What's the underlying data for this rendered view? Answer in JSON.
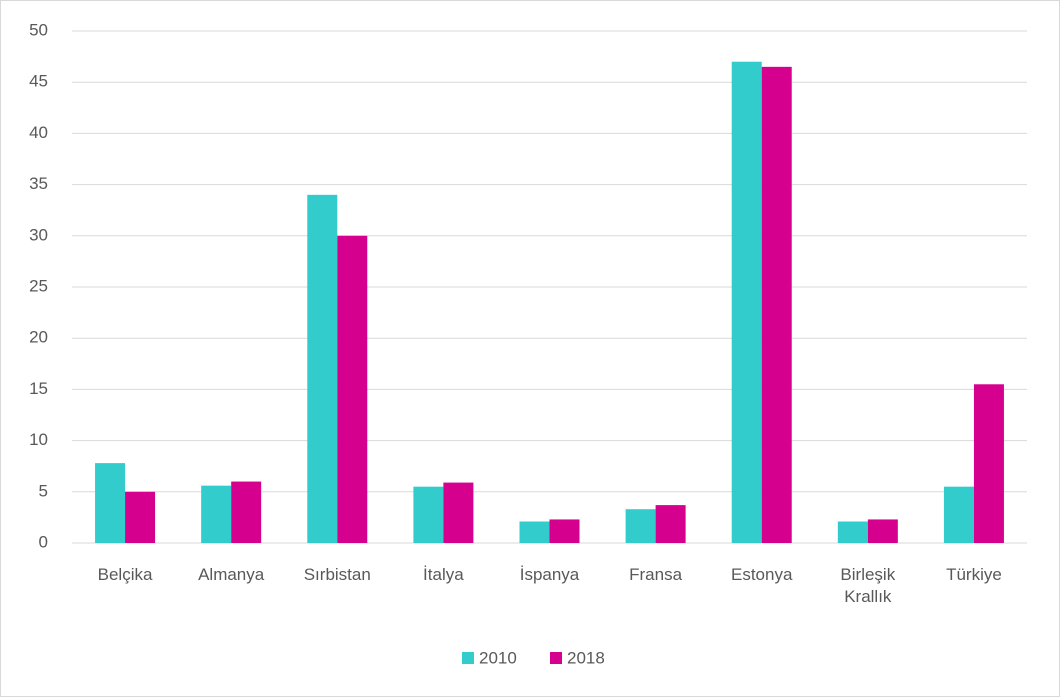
{
  "chart_data": {
    "type": "bar",
    "categories": [
      "Belçika",
      "Almanya",
      "Sırbistan",
      "İtalya",
      "İspanya",
      "Fransa",
      "Estonya",
      "Birleşik Krallık",
      "Türkiye"
    ],
    "series": [
      {
        "name": "2010",
        "color": "#33cccc",
        "values": [
          7.8,
          5.6,
          34,
          5.5,
          2.1,
          3.3,
          47,
          2.1,
          5.5
        ]
      },
      {
        "name": "2018",
        "color": "#d6008f",
        "values": [
          5,
          6,
          30,
          5.9,
          2.3,
          3.7,
          46.5,
          2.3,
          15.5
        ]
      }
    ],
    "ylim": [
      0,
      50
    ],
    "yticks": [
      0,
      5,
      10,
      15,
      20,
      25,
      30,
      35,
      40,
      45,
      50
    ],
    "grid": true,
    "legend": "bottom"
  }
}
